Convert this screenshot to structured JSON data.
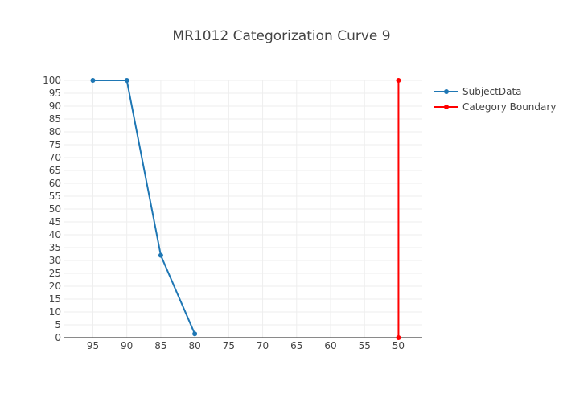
{
  "chart_data": {
    "type": "line",
    "title": "MR1012 Categorization Curve 9",
    "xlabel": "",
    "ylabel": "",
    "x_ticks": [
      "95",
      "90",
      "85",
      "80",
      "75",
      "70",
      "65",
      "60",
      "55",
      "50"
    ],
    "y_ticks": [
      "0",
      "5",
      "10",
      "15",
      "20",
      "25",
      "30",
      "35",
      "40",
      "45",
      "50",
      "55",
      "60",
      "65",
      "70",
      "75",
      "80",
      "85",
      "90",
      "95",
      "100"
    ],
    "xlim": [
      99.2,
      46.5
    ],
    "ylim": [
      0,
      100
    ],
    "x_reversed": true,
    "grid": true,
    "legend_position": "top-right",
    "series": [
      {
        "name": "SubjectData",
        "color": "#1f77b4",
        "x": [
          95,
          90,
          85,
          80
        ],
        "y": [
          100,
          100,
          32,
          1.5
        ]
      },
      {
        "name": "Category Boundary",
        "color": "#ff0000",
        "x": [
          50,
          50
        ],
        "y": [
          0,
          100
        ]
      }
    ]
  }
}
